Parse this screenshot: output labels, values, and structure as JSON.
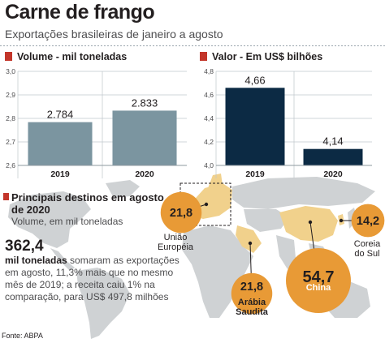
{
  "title": "Carne de frango",
  "subtitle": "Exportações brasileiras de janeiro a agosto",
  "source": "Fonte: ABPA",
  "colors": {
    "volume_bar": "#7b95a0",
    "value_bar": "#0c2a44",
    "marker": "#c3362b",
    "bubble": "#e89a36",
    "land": "#cfd2d4",
    "highlight_land": "#f1d18c",
    "grid": "#bfc6cb"
  },
  "chart_data": [
    {
      "type": "bar",
      "title": "Volume - mil toneladas",
      "categories": [
        "2019",
        "2020"
      ],
      "values": [
        2784,
        2833
      ],
      "value_labels": [
        "2.784",
        "2.833"
      ],
      "ylim": [
        2.6,
        3.0
      ],
      "yticks": [
        "3,0",
        "2,9",
        "2,8",
        "2,7",
        "2,6"
      ],
      "scale_factor": 1000,
      "grid": true
    },
    {
      "type": "bar",
      "title": "Valor - Em US$ bilhões",
      "categories": [
        "2019",
        "2020"
      ],
      "values": [
        4.66,
        4.14
      ],
      "value_labels": [
        "4,66",
        "4,14"
      ],
      "ylim": [
        4.0,
        4.8
      ],
      "yticks": [
        "4,8",
        "4,6",
        "4,4",
        "4,2",
        "4,0"
      ],
      "scale_factor": 1,
      "grid": true
    },
    {
      "type": "scatter",
      "title": "Principais destinos em agosto de 2020",
      "subtitle": "Volume, em mil toneladas",
      "points": [
        {
          "label": "China",
          "value": 54.7,
          "value_label": "54,7"
        },
        {
          "label": "Arábia Saudita",
          "value": 21.8,
          "value_label": "21,8"
        },
        {
          "label": "União Européia",
          "value": 21.8,
          "value_label": "21,8"
        },
        {
          "label": "Coreia do Sul",
          "value": 14.2,
          "value_label": "14,2"
        }
      ]
    }
  ],
  "summary": {
    "value": "362,4",
    "unit": "mil toneladas",
    "text": "somaram as exportações em agosto, 11,3% mais que no mesmo mês de 2019; a receita caiu 1% na comparação, para US$ 497,8 milhões"
  }
}
